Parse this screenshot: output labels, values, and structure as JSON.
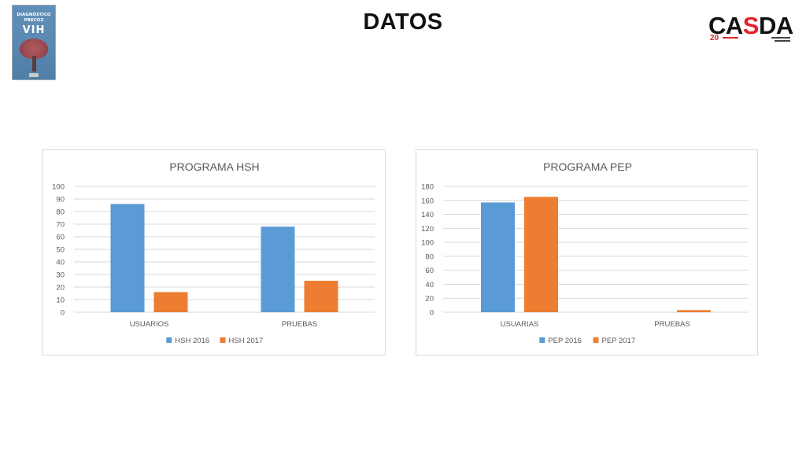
{
  "slide": {
    "title": "DATOS"
  },
  "poster": {
    "line1": "DIAGNÓSTICO",
    "line2": "PRECOZ",
    "line3": "VIH"
  },
  "logo": {
    "text_left": "CA",
    "text_accent": "S",
    "text_right": "DA",
    "badge": "20",
    "accent_color": "#e3232a"
  },
  "colors": {
    "series_2016": "#5b9bd5",
    "series_2017": "#ed7d31",
    "gridline": "#d9d9d9"
  },
  "chart_data": [
    {
      "type": "bar",
      "title": "PROGRAMA HSH",
      "categories": [
        "USUARIOS",
        "PRUEBAS"
      ],
      "series": [
        {
          "name": "HSH 2016",
          "values": [
            86,
            68
          ],
          "color": "#5b9bd5"
        },
        {
          "name": "HSH 2017",
          "values": [
            16,
            25
          ],
          "color": "#ed7d31"
        }
      ],
      "ylim": [
        0,
        100
      ],
      "yticks": [
        0,
        10,
        20,
        30,
        40,
        50,
        60,
        70,
        80,
        90,
        100
      ],
      "grid": true,
      "legend": "bottom"
    },
    {
      "type": "bar",
      "title": "PROGRAMA PEP",
      "categories": [
        "USUARIAS",
        "PRUEBAS"
      ],
      "series": [
        {
          "name": "PEP 2016",
          "values": [
            157,
            0
          ],
          "color": "#5b9bd5"
        },
        {
          "name": "PEP 2017",
          "values": [
            165,
            3
          ],
          "color": "#ed7d31"
        }
      ],
      "ylim": [
        0,
        180
      ],
      "yticks": [
        0,
        20,
        40,
        60,
        80,
        100,
        120,
        140,
        160,
        180
      ],
      "grid": true,
      "legend": "bottom"
    }
  ]
}
